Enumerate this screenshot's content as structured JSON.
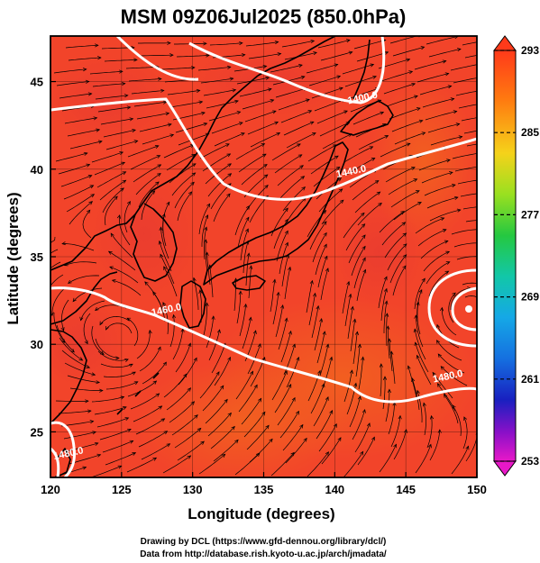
{
  "title": "MSM 09Z06Jul2025 (850.0hPa)",
  "chart_data": {
    "type": "map",
    "xlabel": "Longitude (degrees)",
    "ylabel": "Latitude  (degrees)",
    "xlim": [
      120,
      150
    ],
    "ylim": [
      22.4,
      47.6
    ],
    "x_ticks": [
      "120",
      "125",
      "130",
      "135",
      "140",
      "145",
      "150"
    ],
    "y_ticks": [
      "25",
      "30",
      "35",
      "40",
      "45"
    ],
    "grid": true,
    "colorbar": {
      "ticks": [
        "293",
        "285",
        "277",
        "269",
        "261",
        "253"
      ],
      "min": 253,
      "max": 293
    },
    "contours": [
      {
        "label": "1400.0",
        "label_lon": 142.0,
        "label_lat": 43.9
      },
      {
        "label": "1440.0",
        "label_lon": 141.2,
        "label_lat": 39.7
      },
      {
        "label": "1460.0",
        "label_lon": 128.2,
        "label_lat": 31.8
      },
      {
        "label": "1480.0",
        "label_lon": 148.0,
        "label_lat": 28.0
      },
      {
        "label": "1480.0",
        "label_lon": 121.3,
        "label_lat": 23.6
      }
    ]
  },
  "credits": {
    "line1": "Drawing by DCL (https://www.gfd-dennou.org/library/dcl/)",
    "line2": "Data from http://database.rish.kyoto-u.ac.jp/arch/jmadata/"
  }
}
